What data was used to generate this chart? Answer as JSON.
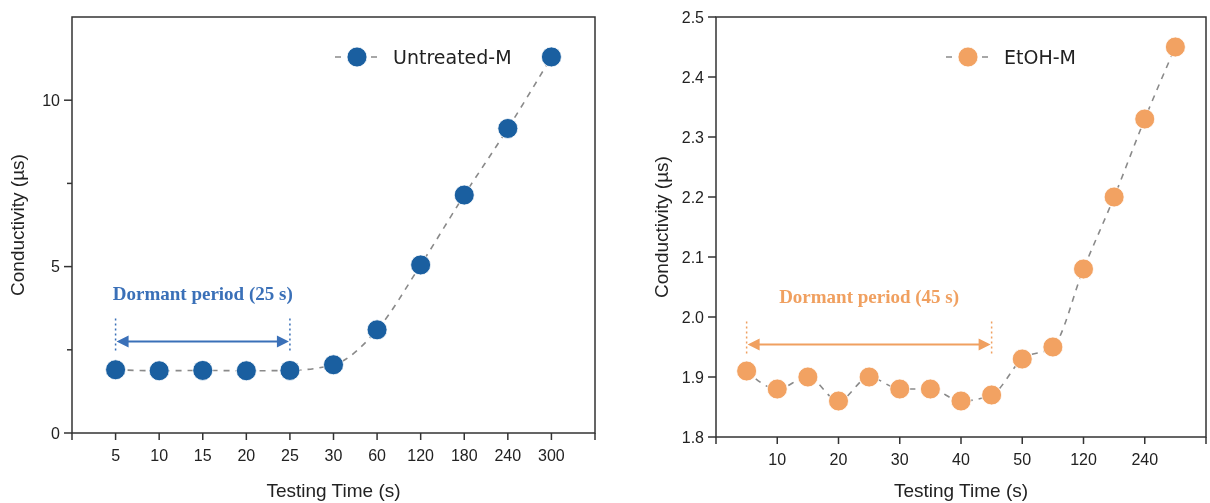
{
  "chart_data": [
    {
      "type": "line",
      "xlabel": "Testing Time (s)",
      "ylabel": "Conductivity (µs)",
      "categories": [
        "5",
        "10",
        "15",
        "20",
        "25",
        "30",
        "60",
        "120",
        "180",
        "240",
        "300"
      ],
      "series": [
        {
          "name": "Untreated-M",
          "color": "#1a5fa0",
          "values": [
            1.9,
            1.87,
            1.88,
            1.87,
            1.88,
            2.05,
            3.1,
            5.05,
            7.15,
            9.15,
            11.3
          ]
        }
      ],
      "ylim": [
        0,
        12.5
      ],
      "yticks": [
        0,
        {
          "value": 2.5,
          "label": null
        },
        5,
        {
          "value": 7.5,
          "label": null
        },
        10
      ],
      "annotations": [
        "Dormant period (25 s)"
      ],
      "marker": "circle",
      "line_style": "dashed",
      "legend": "top right"
    },
    {
      "type": "line",
      "xlabel": "Testing Time (s)",
      "ylabel": "Conductivity (µs)",
      "categories": [
        null,
        "10",
        null,
        "20",
        null,
        "30",
        null,
        "40",
        null,
        "50",
        null,
        "120",
        null,
        "240",
        null
      ],
      "series": [
        {
          "name": "EtOH-M",
          "color": "#f2a262",
          "values": [
            1.91,
            1.88,
            1.9,
            1.86,
            1.9,
            1.88,
            1.88,
            1.86,
            1.87,
            1.93,
            1.95,
            2.08,
            2.2,
            2.33,
            2.45
          ]
        }
      ],
      "ylim": [
        1.8,
        2.5
      ],
      "yticks": [
        1.8,
        1.9,
        {
          "value": 2.0,
          "label": "2.0"
        },
        2.1,
        2.2,
        2.3,
        2.4,
        2.5
      ],
      "annotations": [
        "Dormant period (45 s)"
      ],
      "marker": "circle",
      "line_style": "dashed",
      "legend": "top right"
    }
  ]
}
